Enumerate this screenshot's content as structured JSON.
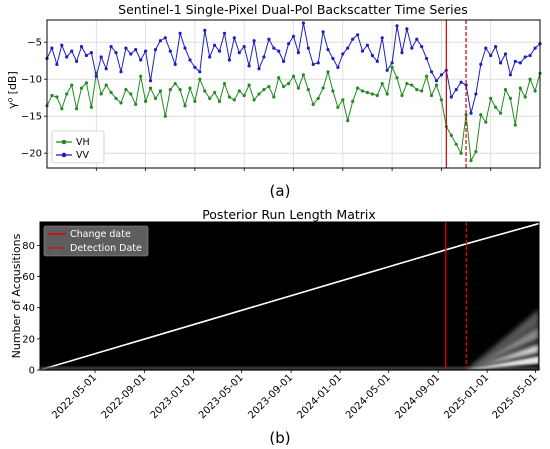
{
  "panel_a_label": "(a)",
  "panel_b_label": "(b)",
  "chart_data": [
    {
      "type": "line",
      "title": "Sentinel-1 Single-Pixel Dual-Pol Backscatter Time Series",
      "ylabel": "γ⁰ [dB]",
      "xlabel": "",
      "ylim": [
        -22,
        -2
      ],
      "yticks": [
        -20,
        -15,
        -10,
        -5
      ],
      "xlim": [
        0,
        100
      ],
      "grid": true,
      "legend": "lower-left",
      "change_index": 81,
      "detection_index": 85,
      "colors": {
        "VH": "#228b22",
        "VV": "#1f1fbf",
        "change": "#cc0000",
        "detection": "#cc0000"
      },
      "series": [
        {
          "name": "VH",
          "values": [
            -13.6,
            -12.2,
            -12.4,
            -14.0,
            -12.0,
            -10.8,
            -14.0,
            -11.2,
            -10.5,
            -13.8,
            -9.2,
            -12.0,
            -10.8,
            -11.8,
            -12.6,
            -13.2,
            -11.4,
            -12.0,
            -13.4,
            -9.6,
            -13.0,
            -11.2,
            -12.6,
            -11.6,
            -15.0,
            -11.4,
            -10.6,
            -11.4,
            -13.6,
            -11.2,
            -13.0,
            -10.0,
            -11.6,
            -12.6,
            -11.8,
            -13.0,
            -10.6,
            -12.4,
            -12.8,
            -11.6,
            -12.2,
            -10.8,
            -12.8,
            -12.0,
            -11.4,
            -11.0,
            -12.4,
            -9.8,
            -11.0,
            -10.6,
            -9.6,
            -11.2,
            -9.4,
            -11.4,
            -13.4,
            -12.6,
            -11.2,
            -9.0,
            -11.6,
            -13.8,
            -12.8,
            -15.6,
            -13.0,
            -11.2,
            -11.6,
            -11.8,
            -12.0,
            -12.2,
            -10.6,
            -12.0,
            -8.4,
            -9.8,
            -12.2,
            -10.6,
            -10.8,
            -11.4,
            -11.6,
            -9.6,
            -12.2,
            -10.8,
            -12.8,
            -16.4,
            -17.6,
            -18.8,
            -20.0,
            -14.8,
            -21.0,
            -19.8,
            -14.8,
            -15.8,
            -12.6,
            -13.8,
            -14.6,
            -11.4,
            -12.6,
            -16.2,
            -11.2,
            -12.4,
            -10.0,
            -11.6,
            -9.2
          ]
        },
        {
          "name": "VV",
          "values": [
            -7.2,
            -5.8,
            -8.0,
            -5.4,
            -7.0,
            -6.2,
            -7.6,
            -5.6,
            -6.8,
            -6.4,
            -9.6,
            -7.0,
            -8.6,
            -5.6,
            -6.4,
            -9.0,
            -5.8,
            -6.6,
            -6.0,
            -7.4,
            -6.2,
            -10.2,
            -6.0,
            -4.8,
            -4.4,
            -6.2,
            -8.0,
            -3.8,
            -5.8,
            -7.4,
            -8.4,
            -9.0,
            -3.4,
            -7.0,
            -5.4,
            -6.2,
            -3.8,
            -7.4,
            -4.4,
            -6.4,
            -5.6,
            -8.2,
            -4.8,
            -8.6,
            -7.0,
            -4.6,
            -5.8,
            -6.2,
            -7.6,
            -5.2,
            -4.2,
            -6.4,
            -2.4,
            -5.8,
            -8.0,
            -7.8,
            -3.6,
            -6.0,
            -7.2,
            -8.4,
            -6.6,
            -5.8,
            -4.6,
            -4.0,
            -6.2,
            -5.4,
            -6.8,
            -7.6,
            -4.4,
            -8.8,
            -7.8,
            -2.8,
            -6.4,
            -3.2,
            -5.8,
            -4.6,
            -5.6,
            -7.2,
            -9.0,
            -10.2,
            -9.4,
            -8.8,
            -12.4,
            -11.4,
            -10.4,
            -10.8,
            -14.6,
            -12.0,
            -8.0,
            -5.8,
            -6.8,
            -5.6,
            -7.8,
            -6.6,
            -9.4,
            -7.6,
            -7.8,
            -7.0,
            -6.8,
            -5.8,
            -5.2
          ]
        }
      ]
    },
    {
      "type": "heatmap",
      "title": "Posterior Run Length Matrix",
      "ylabel": "Number of Acqusitions",
      "xlabel": "",
      "ylim": [
        0,
        95
      ],
      "yticks": [
        0,
        20,
        40,
        60,
        80
      ],
      "xlim": [
        "2021-12-15",
        "2025-05-10"
      ],
      "xticks": [
        "2022-05-01",
        "2022-09-01",
        "2023-01-01",
        "2023-05-01",
        "2023-09-01",
        "2024-01-01",
        "2024-05-01",
        "2024-09-01",
        "2025-01-01",
        "2025-05-01"
      ],
      "change_date": "2024-09-20",
      "detection_date": "2024-11-10",
      "legend": "top-left",
      "series": [
        {
          "name": "Change date",
          "style": "solid",
          "color": "#e00000"
        },
        {
          "name": "Detection Date",
          "style": "dashed",
          "color": "#e00000"
        }
      ],
      "run_length_start": "2021-12-15",
      "run_length_end_value": 81,
      "post_change_end_value": 94
    }
  ]
}
